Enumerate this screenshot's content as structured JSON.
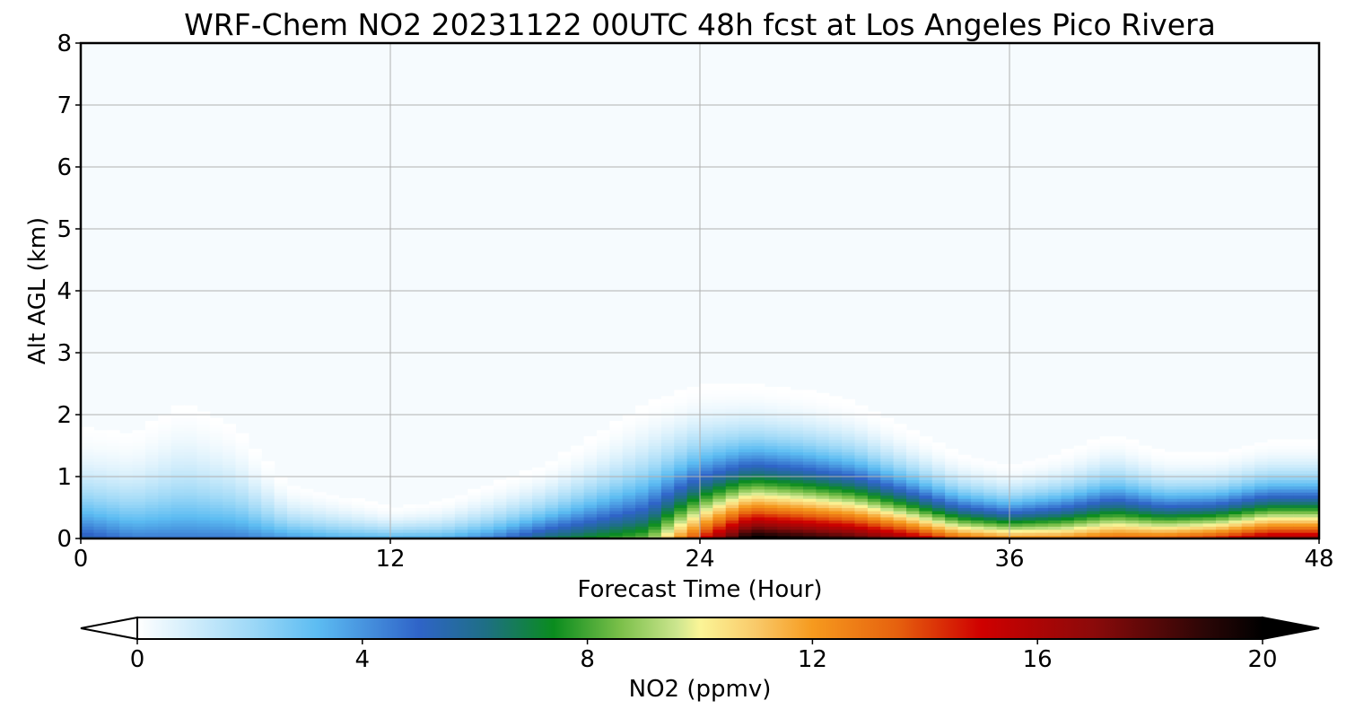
{
  "chart_data": {
    "type": "heatmap",
    "title": "WRF-Chem NO2  20231122 00UTC 48h fcst at Los Angeles Pico Rivera",
    "xlabel": "Forecast Time (Hour)",
    "ylabel": "Alt AGL (km)",
    "xlim": [
      0,
      48
    ],
    "ylim": [
      0,
      8
    ],
    "x_ticks": [
      0,
      12,
      24,
      36,
      48
    ],
    "y_ticks": [
      0,
      1,
      2,
      3,
      4,
      5,
      6,
      7,
      8
    ],
    "grid": true,
    "colorbar": {
      "label": "NO2  (ppmv)",
      "range": [
        0,
        20
      ],
      "ticks": [
        0,
        4,
        8,
        12,
        16,
        20
      ],
      "extend": "both",
      "orientation": "horizontal",
      "placement": "bottom",
      "color_stops": [
        {
          "v": 0,
          "c": "#ffffff"
        },
        {
          "v": 2,
          "c": "#9fd9f7"
        },
        {
          "v": 3.2,
          "c": "#5cbcf2"
        },
        {
          "v": 5,
          "c": "#2f64c8"
        },
        {
          "v": 6.2,
          "c": "#1e6f84"
        },
        {
          "v": 7.4,
          "c": "#0a8c1e"
        },
        {
          "v": 8.6,
          "c": "#7cc04a"
        },
        {
          "v": 9.6,
          "c": "#cde68f"
        },
        {
          "v": 10,
          "c": "#fbf597"
        },
        {
          "v": 11,
          "c": "#f9c969"
        },
        {
          "v": 12,
          "c": "#f69a1e"
        },
        {
          "v": 13.5,
          "c": "#e6610e"
        },
        {
          "v": 15,
          "c": "#cf0000"
        },
        {
          "v": 17,
          "c": "#8b0a0a"
        },
        {
          "v": 19,
          "c": "#2a0606"
        },
        {
          "v": 20,
          "c": "#000000"
        }
      ]
    },
    "field": {
      "description_units": "NO2 (ppmv)",
      "times": [
        0,
        2,
        4,
        6,
        8,
        10,
        12,
        14,
        16,
        18,
        20,
        22,
        24,
        26,
        28,
        30,
        32,
        34,
        36,
        38,
        40,
        42,
        44,
        46,
        48
      ],
      "surface_values": [
        5,
        4,
        4,
        4,
        3.5,
        3,
        3,
        3,
        4,
        6,
        7,
        8,
        14,
        20,
        19,
        18,
        16,
        13,
        12,
        12,
        13,
        13,
        14,
        16,
        16
      ],
      "plume_top_km": [
        1.8,
        1.7,
        2.2,
        1.8,
        0.9,
        0.7,
        0.5,
        0.6,
        0.9,
        1.2,
        1.7,
        2.2,
        2.5,
        2.5,
        2.4,
        2.2,
        1.8,
        1.4,
        1.2,
        1.4,
        1.7,
        1.4,
        1.4,
        1.6,
        1.6
      ]
    }
  }
}
